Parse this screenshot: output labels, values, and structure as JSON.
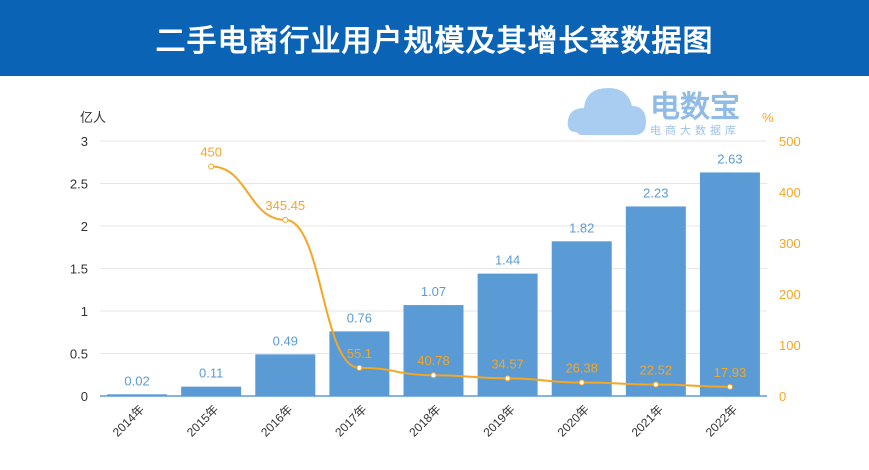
{
  "title": "二手电商行业用户规模及其增长率数据图",
  "logo": {
    "name": "电数宝",
    "tagline": "电商大数据库",
    "mark": "eDT"
  },
  "chart_data": {
    "type": "bar+line",
    "categories": [
      "2014年",
      "2015年",
      "2016年",
      "2017年",
      "2018年",
      "2019年",
      "2020年",
      "2021年",
      "2022年"
    ],
    "series": [
      {
        "type": "bar",
        "axis": "left",
        "values": [
          0.02,
          0.11,
          0.49,
          0.76,
          1.07,
          1.44,
          1.82,
          2.23,
          2.63
        ],
        "color": "#5b9bd5"
      },
      {
        "type": "line",
        "axis": "right",
        "values": [
          null,
          450,
          345.45,
          55.1,
          40.78,
          34.57,
          26.38,
          22.52,
          17.93
        ],
        "color": "#f5a623"
      }
    ],
    "y_left": {
      "label": "亿人",
      "ylim": [
        0,
        3
      ],
      "ticks": [
        "0",
        "0.5",
        "1",
        "1.5",
        "2",
        "2.5",
        "3"
      ]
    },
    "y_right": {
      "label": "%",
      "ylim": [
        0,
        500
      ],
      "ticks": [
        "0",
        "100",
        "200",
        "300",
        "400",
        "500"
      ]
    },
    "grid": true
  }
}
